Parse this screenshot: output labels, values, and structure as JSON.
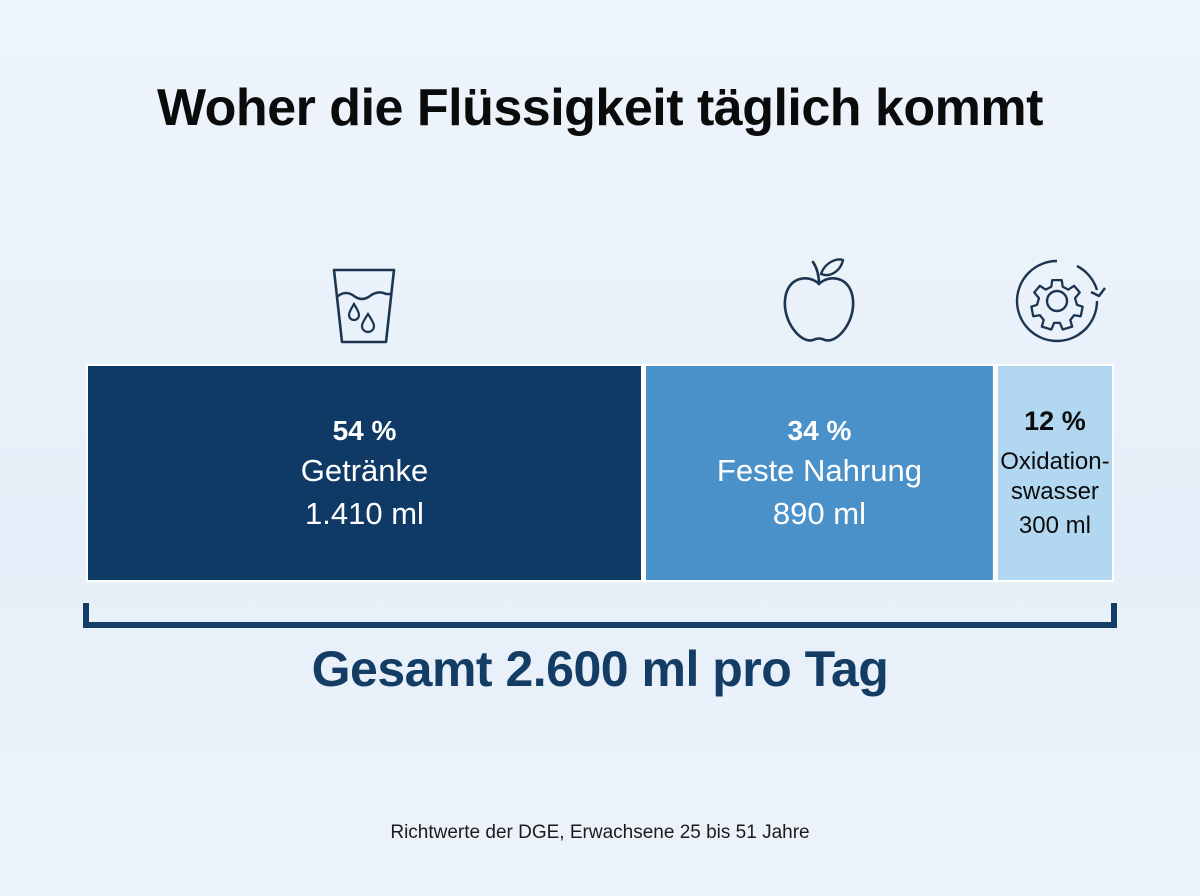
{
  "title": "Woher die Flüssigkeit täglich kommt",
  "total_label": "Gesamt 2.600 ml pro Tag",
  "source": "Richtwerte der DGE, Erwachsene 25 bis 51 Jahre",
  "chart_data": {
    "type": "bar",
    "orientation": "horizontal-stacked",
    "total_ml": 2600,
    "segments": [
      {
        "percent_label": "54 %",
        "name": "Getränke",
        "name_lines": [
          "Getränke"
        ],
        "value_label": "1.410 ml",
        "value_ml": 1410,
        "percent": 54,
        "color": "#0f3a66",
        "text_color": "#ffffff",
        "icon": "water-glass-icon"
      },
      {
        "percent_label": "34 %",
        "name": "Feste Nahrung",
        "name_lines": [
          "Feste Nahrung"
        ],
        "value_label": "890 ml",
        "value_ml": 890,
        "percent": 34,
        "color": "#4b91c9",
        "text_color": "#ffffff",
        "icon": "apple-icon"
      },
      {
        "percent_label": "12 %",
        "name": "Oxidationswasser",
        "name_lines": [
          "Oxidation-",
          "swasser"
        ],
        "value_label": "300 ml",
        "value_ml": 300,
        "percent": 12,
        "color": "#b2d8f1",
        "text_color": "#0b0b0b",
        "icon": "gear-cycle-icon"
      }
    ]
  },
  "colors": {
    "bracket": "#143d66",
    "icon_stroke": "#1c3550"
  }
}
